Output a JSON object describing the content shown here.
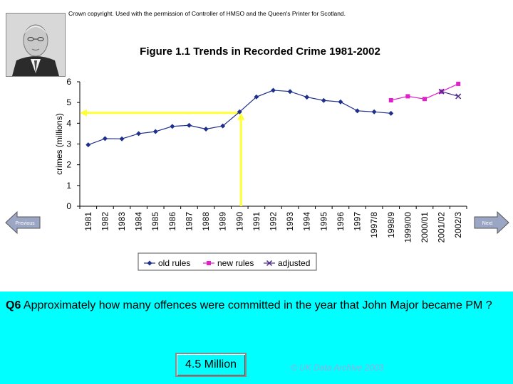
{
  "copyright": "Crown copyright. Used with the permission of Controller of HMSO and the Queen's Printer for Scotland.",
  "navigation": {
    "previous_label": "Previous",
    "next_label": "Next"
  },
  "question": {
    "number": "Q6",
    "text": "Approximately how many offences were committed in the year that John Major became PM ?"
  },
  "answer": "4.5 Million",
  "footer": "© UK Data Archive 2003",
  "colors": {
    "old_rules": "#1f2f8c",
    "new_rules": "#e020c8",
    "adjusted": "#4a2a8a",
    "highlight": "#ffff33",
    "panel": "#00ffff"
  },
  "chart_data": {
    "type": "line",
    "title": "Figure 1.1 Trends in Recorded Crime 1981-2002",
    "xlabel": "",
    "ylabel": "crimes (millions)",
    "ylim": [
      0,
      6
    ],
    "yticks": [
      0,
      1,
      2,
      3,
      4,
      5,
      6
    ],
    "categories": [
      "1981",
      "1982",
      "1983",
      "1984",
      "1985",
      "1986",
      "1987",
      "1988",
      "1989",
      "1990",
      "1991",
      "1992",
      "1993",
      "1994",
      "1995",
      "1996",
      "1997",
      "1997/8",
      "1998/9",
      "1999/00",
      "2000/01",
      "2001/02",
      "2002/3"
    ],
    "series": [
      {
        "name": "old rules",
        "marker": "diamond",
        "values": [
          2.96,
          3.26,
          3.25,
          3.5,
          3.6,
          3.85,
          3.9,
          3.72,
          3.87,
          4.55,
          5.27,
          5.59,
          5.53,
          5.26,
          5.1,
          5.03,
          4.6,
          4.55,
          4.48,
          null,
          null,
          null,
          null
        ]
      },
      {
        "name": "new rules",
        "marker": "square",
        "values": [
          null,
          null,
          null,
          null,
          null,
          null,
          null,
          null,
          null,
          null,
          null,
          null,
          null,
          null,
          null,
          null,
          null,
          null,
          5.11,
          5.3,
          5.17,
          5.53,
          5.9
        ]
      },
      {
        "name": "adjusted",
        "marker": "x",
        "values": [
          null,
          null,
          null,
          null,
          null,
          null,
          null,
          null,
          null,
          null,
          null,
          null,
          null,
          null,
          null,
          null,
          null,
          null,
          null,
          null,
          null,
          5.53,
          5.3
        ]
      }
    ],
    "annotations": [
      {
        "type": "highlight-lines",
        "year": "1990",
        "value": 4.5,
        "description": "arrows from 1990 to the y-axis"
      }
    ],
    "legend": "bottom"
  }
}
